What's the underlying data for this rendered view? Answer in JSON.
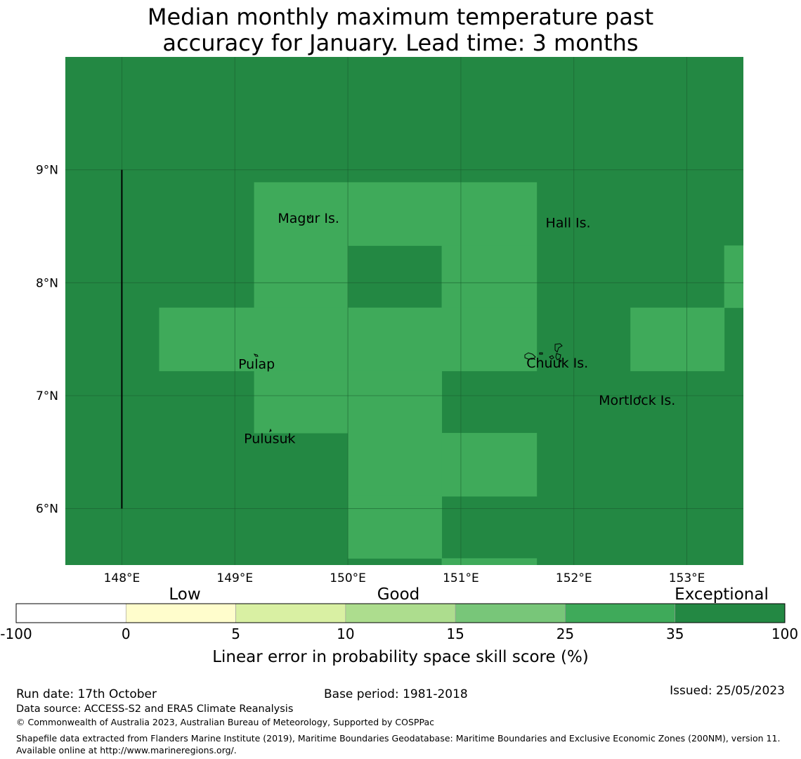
{
  "title": {
    "line1": "Median monthly maximum temperature past",
    "line2": "accuracy for January. Lead time: 3 months"
  },
  "colors": {
    "exceptional": "#238843",
    "good_plus": "#3faa5a",
    "grid": "#1a5c2e",
    "coast": "#000000"
  },
  "map": {
    "lon_range": [
      147.5,
      153.5
    ],
    "lat_range": [
      5.5,
      10.0
    ],
    "lon_ticks": [
      {
        "value": 148,
        "label": "148°E"
      },
      {
        "value": 149,
        "label": "149°E"
      },
      {
        "value": 150,
        "label": "150°E"
      },
      {
        "value": 151,
        "label": "151°E"
      },
      {
        "value": 152,
        "label": "152°E"
      },
      {
        "value": 153,
        "label": "153°E"
      }
    ],
    "lat_ticks": [
      {
        "value": 9,
        "label": "9°N"
      },
      {
        "value": 8,
        "label": "8°N"
      },
      {
        "value": 7,
        "label": "7°N"
      },
      {
        "value": 6,
        "label": "6°N"
      }
    ],
    "skill_cells_25_35": [
      {
        "lon": [
          149.17,
          150.0
        ],
        "lat": [
          7.78,
          8.89
        ]
      },
      {
        "lon": [
          150.0,
          151.67
        ],
        "lat": [
          8.33,
          8.89
        ]
      },
      {
        "lon": [
          150.83,
          151.67
        ],
        "lat": [
          7.78,
          8.33
        ]
      },
      {
        "lon": [
          148.33,
          150.0
        ],
        "lat": [
          7.22,
          7.78
        ]
      },
      {
        "lon": [
          150.0,
          151.67
        ],
        "lat": [
          7.22,
          7.78
        ]
      },
      {
        "lon": [
          149.17,
          150.0
        ],
        "lat": [
          6.67,
          7.22
        ]
      },
      {
        "lon": [
          150.0,
          150.83
        ],
        "lat": [
          6.11,
          7.22
        ]
      },
      {
        "lon": [
          150.83,
          151.67
        ],
        "lat": [
          6.11,
          6.67
        ]
      },
      {
        "lon": [
          150.0,
          150.83
        ],
        "lat": [
          5.56,
          6.11
        ]
      },
      {
        "lon": [
          150.83,
          151.67
        ],
        "lat": [
          5.5,
          5.56
        ]
      },
      {
        "lon": [
          152.5,
          153.33
        ],
        "lat": [
          7.22,
          7.78
        ]
      },
      {
        "lon": [
          153.33,
          153.5
        ],
        "lat": [
          7.78,
          8.33
        ]
      }
    ],
    "boundary_line": {
      "lon": 148.0,
      "lat": [
        6.0,
        9.0
      ]
    },
    "places": [
      {
        "name": "Magur Is.",
        "lon": 149.38,
        "lat": 8.53
      },
      {
        "name": "Hall Is.",
        "lon": 151.75,
        "lat": 8.49
      },
      {
        "name": "Pulap",
        "lon": 149.03,
        "lat": 7.24
      },
      {
        "name": "Chuuk Is.",
        "lon": 151.58,
        "lat": 7.25
      },
      {
        "name": "Mortlock Is.",
        "lon": 152.22,
        "lat": 6.92
      },
      {
        "name": "Pulusuk",
        "lon": 149.08,
        "lat": 6.58
      }
    ]
  },
  "colorbar": {
    "categories": [
      "Low",
      "Good",
      "Exceptional"
    ],
    "segments": [
      {
        "from": "-100",
        "to": "0",
        "color": "#ffffff"
      },
      {
        "from": "0",
        "to": "5",
        "color": "#fffdcc"
      },
      {
        "from": "5",
        "to": "10",
        "color": "#d9f0a3"
      },
      {
        "from": "10",
        "to": "15",
        "color": "#addd8e"
      },
      {
        "from": "15",
        "to": "25",
        "color": "#78c679"
      },
      {
        "from": "25",
        "to": "35",
        "color": "#3faa5a"
      },
      {
        "from": "35",
        "to": "100",
        "color": "#238843"
      }
    ],
    "tick_labels": [
      "-100",
      "0",
      "5",
      "10",
      "15",
      "25",
      "35",
      "100"
    ],
    "label": "Linear error in probability space skill score (%)"
  },
  "footer": {
    "run_date": "Run date: 17th October",
    "base_period": "Base period: 1981-2018",
    "issued": "Issued: 25/05/2023",
    "data_source": "Data source: ACCESS-S2 and ERA5 Climate Reanalysis",
    "copyright": "© Commonwealth of Australia 2023, Australian Bureau of Meteorology, Supported by COSPPac",
    "shapefile": "Shapefile data extracted from Flanders Marine Institute (2019), Maritime Boundaries Geodatabase: Maritime Boundaries and Exclusive Economic Zones (200NM), version 11. Available online at http://www.marineregions.org/."
  }
}
